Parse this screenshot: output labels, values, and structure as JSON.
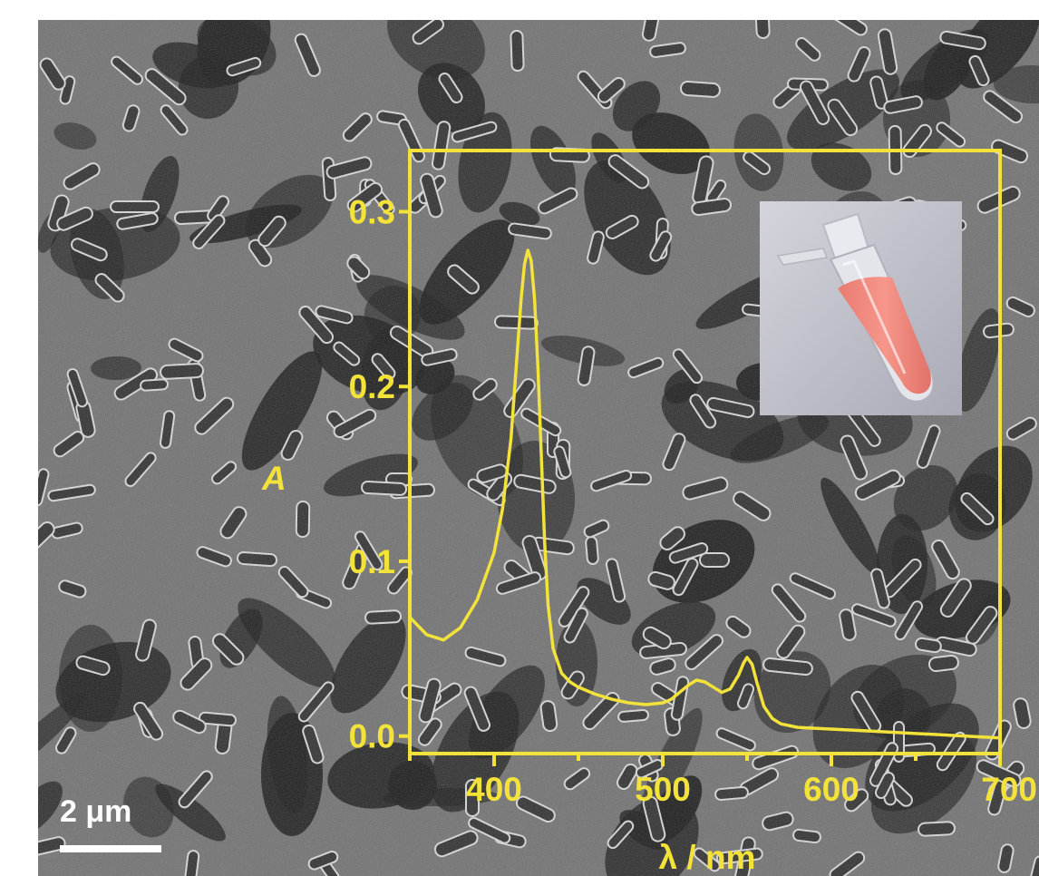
{
  "figure": {
    "background_description_color": "#707070",
    "accent_color": "#f2e23a",
    "scale_bar": {
      "label": "2 μm",
      "color": "#ffffff"
    }
  },
  "inset_photo": {
    "icon": "sample-vial-photo",
    "liquid_color": "#f08a80",
    "background_color": "#c9cad3"
  },
  "chart_data": {
    "type": "line",
    "title": "",
    "xlabel": "λ / nm",
    "ylabel": "A",
    "xlim": [
      350,
      700
    ],
    "ylim": [
      -0.01,
      0.335
    ],
    "x_ticks": [
      400,
      500,
      600,
      700
    ],
    "x_tick_labels": [
      "400",
      "500",
      "600",
      "700"
    ],
    "y_ticks": [
      0.0,
      0.1,
      0.2,
      0.3
    ],
    "y_tick_labels": [
      "0.0",
      "0.1",
      "0.2",
      "0.3"
    ],
    "grid": false,
    "legend": "none",
    "line_color": "#f2e23a",
    "series": [
      {
        "x": [
          350,
          360,
          370,
          380,
          390,
          400,
          405,
          410,
          413,
          416,
          418,
          420,
          422,
          424,
          426,
          428,
          430,
          432,
          435,
          440,
          445,
          450,
          460,
          470,
          480,
          490,
          500,
          505,
          510,
          515,
          520,
          525,
          530,
          535,
          540,
          545,
          548,
          550,
          553,
          556,
          560,
          565,
          570,
          580,
          600,
          620,
          640,
          660,
          680,
          700
        ],
        "y": [
          0.068,
          0.058,
          0.055,
          0.062,
          0.078,
          0.105,
          0.13,
          0.17,
          0.21,
          0.25,
          0.27,
          0.278,
          0.272,
          0.25,
          0.21,
          0.16,
          0.11,
          0.075,
          0.05,
          0.036,
          0.031,
          0.028,
          0.024,
          0.021,
          0.019,
          0.018,
          0.019,
          0.021,
          0.025,
          0.029,
          0.032,
          0.031,
          0.028,
          0.025,
          0.027,
          0.035,
          0.042,
          0.045,
          0.041,
          0.03,
          0.017,
          0.01,
          0.007,
          0.005,
          0.004,
          0.003,
          0.002,
          0.001,
          0.0,
          -0.001
        ]
      }
    ]
  }
}
